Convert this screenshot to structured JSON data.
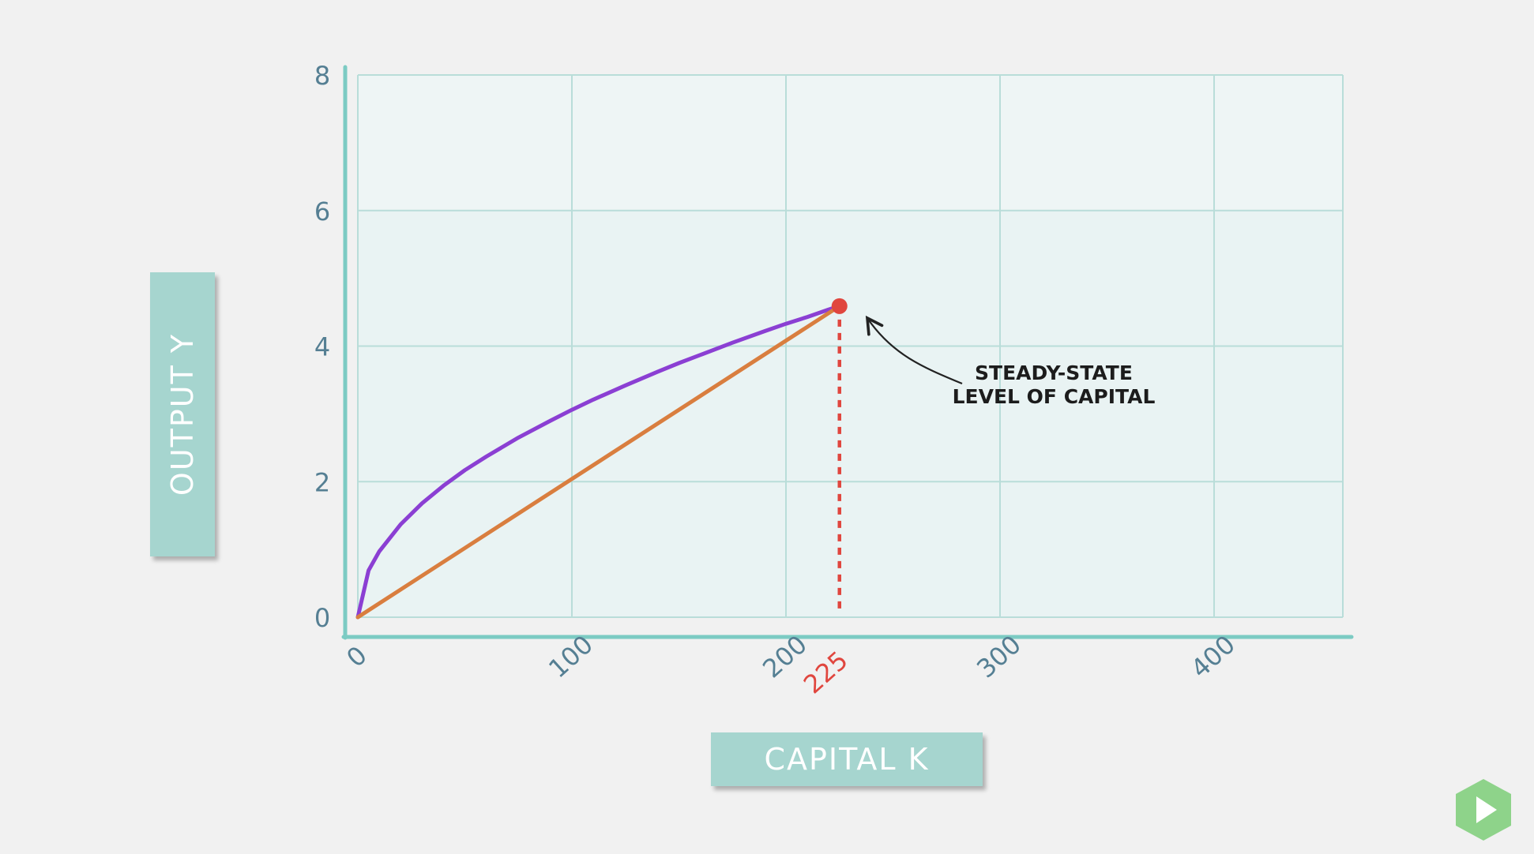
{
  "chart_data": {
    "type": "line",
    "xlabel": "CAPITAL K",
    "ylabel": "OUTPUT Y",
    "xlim": [
      0,
      460
    ],
    "ylim": [
      0,
      8
    ],
    "x_ticks": [
      "0",
      "100",
      "200",
      "300",
      "400"
    ],
    "y_ticks": [
      "0",
      "2",
      "4",
      "6",
      "8"
    ],
    "grid": true,
    "series": [
      {
        "color": "#8b3fd3",
        "x": [
          0,
          5,
          10,
          20,
          30,
          40,
          50,
          60,
          75,
          90,
          100,
          110,
          125,
          140,
          150,
          160,
          175,
          190,
          200,
          210,
          220,
          225
        ],
        "y": [
          0,
          0.69,
          0.97,
          1.37,
          1.68,
          1.94,
          2.17,
          2.37,
          2.65,
          2.9,
          3.06,
          3.21,
          3.42,
          3.62,
          3.75,
          3.87,
          4.05,
          4.22,
          4.33,
          4.43,
          4.54,
          4.59
        ]
      },
      {
        "color": "#d97e3f",
        "x": [
          0,
          225
        ],
        "y": [
          0,
          4.59
        ]
      }
    ],
    "steady_state": {
      "x": 225,
      "y": 4.59,
      "label": "225",
      "color": "#e0463e"
    },
    "annotation": {
      "lines": [
        "STEADY-STATE",
        "LEVEL OF CAPITAL"
      ]
    }
  },
  "colors": {
    "axis": "#7ccbc3",
    "grid": "#b9ddd9",
    "plot_fill": "#e9f3f3",
    "tick_text": "#557f93",
    "label_box": "#a6d5cf",
    "play_badge": "#8ed38a"
  },
  "icons": {
    "play": "play-icon"
  }
}
